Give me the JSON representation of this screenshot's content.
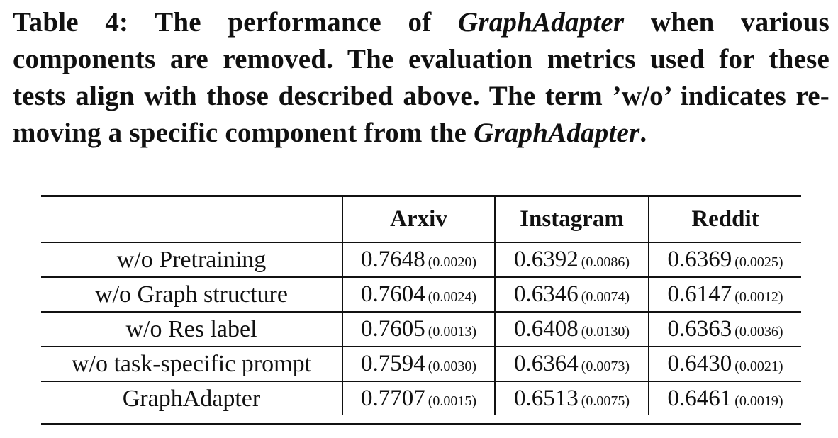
{
  "caption": {
    "label": "Table 4:",
    "part1": "The performance of",
    "model_name_1": "GraphAdapter",
    "part2": "when various components are removed. The evaluation metrics used for these tests align with those described above. The term ’w/o’ indicates re- moving a specific component from the",
    "model_name_2": "GraphAdapter",
    "part3": "."
  },
  "table": {
    "columns": [
      "",
      "Arxiv",
      "Instagram",
      "Reddit"
    ],
    "rows": [
      {
        "label": "w/o Pretraining",
        "cells": [
          {
            "value": "0.7648",
            "std": "(0.0020)"
          },
          {
            "value": "0.6392",
            "std": "(0.0086)"
          },
          {
            "value": "0.6369",
            "std": "(0.0025)"
          }
        ]
      },
      {
        "label": "w/o Graph structure",
        "cells": [
          {
            "value": "0.7604",
            "std": "(0.0024)"
          },
          {
            "value": "0.6346",
            "std": "(0.0074)"
          },
          {
            "value": "0.6147",
            "std": "(0.0012)"
          }
        ]
      },
      {
        "label": "w/o Res label",
        "cells": [
          {
            "value": "0.7605",
            "std": "(0.0013)"
          },
          {
            "value": "0.6408",
            "std": "(0.0130)"
          },
          {
            "value": "0.6363",
            "std": "(0.0036)"
          }
        ]
      },
      {
        "label": "w/o task-specific prompt",
        "cells": [
          {
            "value": "0.7594",
            "std": "(0.0030)"
          },
          {
            "value": "0.6364",
            "std": "(0.0073)"
          },
          {
            "value": "0.6430",
            "std": "(0.0021)"
          }
        ]
      },
      {
        "label": "GraphAdapter",
        "cells": [
          {
            "value": "0.7707",
            "std": "(0.0015)"
          },
          {
            "value": "0.6513",
            "std": "(0.0075)"
          },
          {
            "value": "0.6461",
            "std": "(0.0019)"
          }
        ]
      }
    ]
  }
}
